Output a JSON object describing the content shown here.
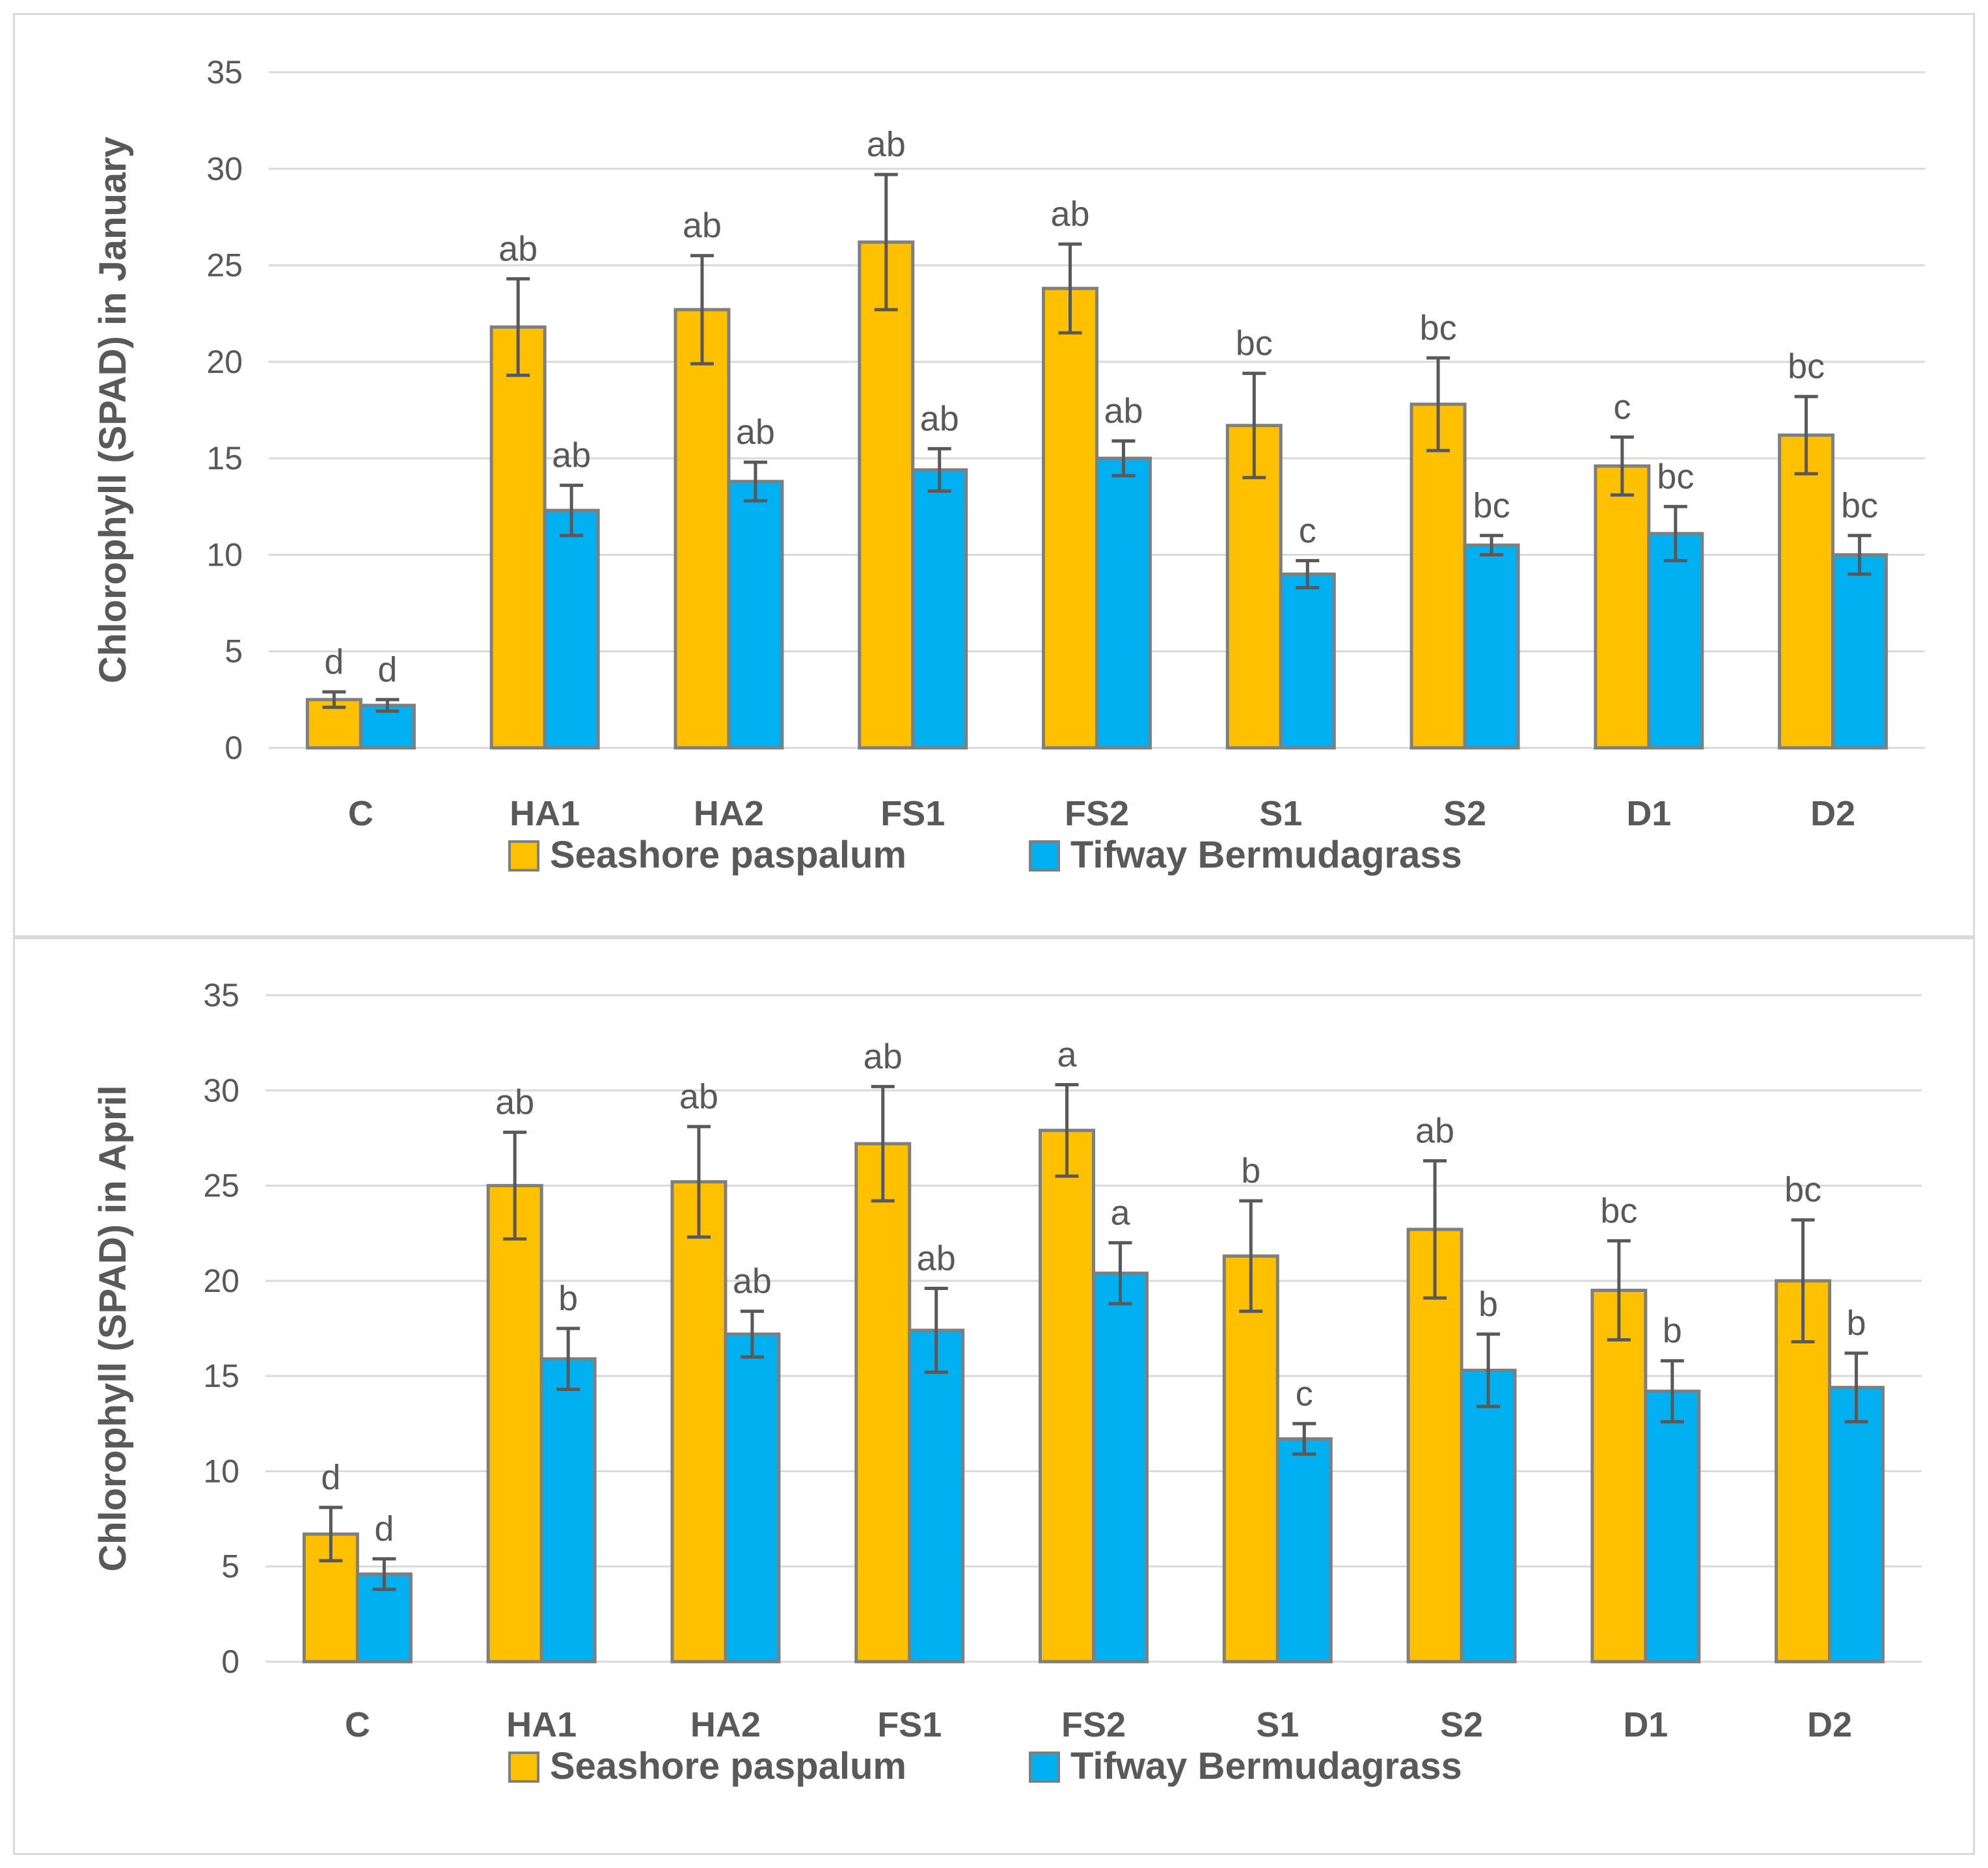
{
  "colors": {
    "seashore": "#FFC000",
    "tifway": "#00B0F0",
    "bar_outline": "#7F7F7F",
    "error_bar": "#595959",
    "gridline": "#D9D9D9",
    "text": "#595959"
  },
  "chart_data": [
    {
      "type": "bar",
      "title": "",
      "ylabel": "Chlorophyll (SPAD) in January",
      "xlabel": "",
      "ylim": [
        0,
        35
      ],
      "yticks": [
        "0",
        "5",
        "10",
        "15",
        "20",
        "25",
        "30",
        "35"
      ],
      "categories": [
        "C",
        "HA1",
        "HA2",
        "FS1",
        "FS2",
        "S1",
        "S2",
        "D1",
        "D2"
      ],
      "legend_position": "bottom",
      "series": [
        {
          "name": "Seashore paspalum",
          "values": [
            2.5,
            21.8,
            22.7,
            26.2,
            23.8,
            16.7,
            17.8,
            14.6,
            16.2
          ],
          "errors": [
            0.4,
            2.5,
            2.8,
            3.5,
            2.3,
            2.7,
            2.4,
            1.5,
            2.0
          ],
          "letters": [
            "d",
            "ab",
            "ab",
            "ab",
            "ab",
            "bc",
            "bc",
            "c",
            "bc"
          ]
        },
        {
          "name": "Tifway Bermudagrass",
          "values": [
            2.2,
            12.3,
            13.8,
            14.4,
            15.0,
            9.0,
            10.5,
            11.1,
            10.0
          ],
          "errors": [
            0.3,
            1.3,
            1.0,
            1.1,
            0.9,
            0.7,
            0.5,
            1.4,
            1.0
          ],
          "letters": [
            "d",
            "ab",
            "ab",
            "ab",
            "ab",
            "c",
            "bc",
            "bc",
            "bc"
          ]
        }
      ]
    },
    {
      "type": "bar",
      "title": "",
      "ylabel": "Chlorophyll (SPAD) in April",
      "xlabel": "",
      "ylim": [
        0,
        35
      ],
      "yticks": [
        "0",
        "5",
        "10",
        "15",
        "20",
        "25",
        "30",
        "35"
      ],
      "categories": [
        "C",
        "HA1",
        "HA2",
        "FS1",
        "FS2",
        "S1",
        "S2",
        "D1",
        "D2"
      ],
      "legend_position": "bottom",
      "series": [
        {
          "name": "Seashore paspalum",
          "values": [
            6.7,
            25.0,
            25.2,
            27.2,
            27.9,
            21.3,
            22.7,
            19.5,
            20.0
          ],
          "errors": [
            1.4,
            2.8,
            2.9,
            3.0,
            2.4,
            2.9,
            3.6,
            2.6,
            3.2
          ],
          "letters": [
            "d",
            "ab",
            "ab",
            "ab",
            "a",
            "b",
            "ab",
            "bc",
            "bc"
          ]
        },
        {
          "name": "Tifway Bermudagrass",
          "values": [
            4.6,
            15.9,
            17.2,
            17.4,
            20.4,
            11.7,
            15.3,
            14.2,
            14.4
          ],
          "errors": [
            0.8,
            1.6,
            1.2,
            2.2,
            1.6,
            0.8,
            1.9,
            1.6,
            1.8
          ],
          "letters": [
            "d",
            "b",
            "ab",
            "ab",
            "a",
            "c",
            "b",
            "b",
            "b"
          ]
        }
      ]
    }
  ]
}
